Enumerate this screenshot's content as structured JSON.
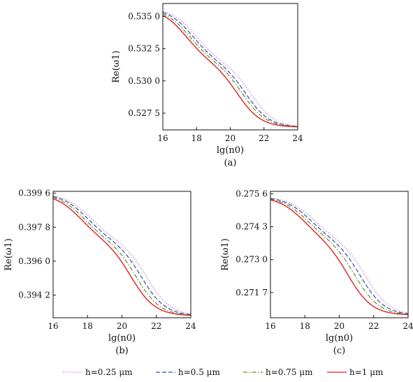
{
  "figure": {
    "legend": [
      {
        "label": "h=0.25 μm",
        "color": "#c45fd0",
        "dash": "dot"
      },
      {
        "label": "h=0.5 μm",
        "color": "#2a4fb0",
        "dash": "dash"
      },
      {
        "label": "h=0.75 μm",
        "color": "#6a8a1f",
        "dash": "dashdot"
      },
      {
        "label": "h=1 μm",
        "color": "#e02020",
        "dash": "solid"
      }
    ]
  },
  "chart_data": [
    {
      "type": "line",
      "panel_label": "(a)",
      "xlabel": "lg(n0)",
      "ylabel": "Re(ω1)",
      "xlim": [
        16,
        24
      ],
      "ylim": [
        0.5262,
        0.536
      ],
      "xticks": [
        16,
        18,
        20,
        22,
        24
      ],
      "xtick_labels": [
        "16",
        "18",
        "20",
        "22",
        "24"
      ],
      "yticks": [
        0.5275,
        0.53,
        0.5325,
        0.535
      ],
      "ytick_labels": [
        "0.527 5",
        "0.530 0",
        "0.532 5",
        "0.535 0"
      ],
      "curve": {
        "top": 0.5357,
        "plateau": 0.5314,
        "bottom": 0.5264
      },
      "series": [
        {
          "name": "h=0.25 μm",
          "c1": 17.95,
          "c2": 21.25
        },
        {
          "name": "h=0.5 μm",
          "c1": 17.75,
          "c2": 20.95
        },
        {
          "name": "h=0.75 μm",
          "c1": 17.55,
          "c2": 20.75
        },
        {
          "name": "h=1 μm",
          "c1": 17.35,
          "c2": 20.45
        }
      ]
    },
    {
      "type": "line",
      "panel_label": "(b)",
      "xlabel": "lg(n0)",
      "ylabel": "Re(ω1)",
      "xlim": [
        16,
        24
      ],
      "ylim": [
        0.393,
        0.3997
      ],
      "xticks": [
        16,
        18,
        20,
        22,
        24
      ],
      "xtick_labels": [
        "16",
        "18",
        "20",
        "22",
        "24"
      ],
      "yticks": [
        0.3942,
        0.396,
        0.3978,
        0.3996
      ],
      "ytick_labels": [
        "0.394 2",
        "0.396 0",
        "0.397 8",
        "0.399 6"
      ],
      "curve": {
        "top": 0.3996,
        "plateau": 0.3971,
        "bottom": 0.3931
      },
      "series": [
        {
          "name": "h=0.25 μm",
          "c1": 18.15,
          "c2": 21.45
        },
        {
          "name": "h=0.5 μm",
          "c1": 17.95,
          "c2": 21.15
        },
        {
          "name": "h=0.75 μm",
          "c1": 17.75,
          "c2": 20.85
        },
        {
          "name": "h=1 μm",
          "c1": 17.55,
          "c2": 20.55
        }
      ]
    },
    {
      "type": "line",
      "panel_label": "(c)",
      "xlabel": "lg(n0)",
      "ylabel": "Re(ω1)",
      "xlim": [
        16,
        24
      ],
      "ylim": [
        0.2707,
        0.2757
      ],
      "xticks": [
        16,
        18,
        20,
        22,
        24
      ],
      "xtick_labels": [
        "16",
        "18",
        "20",
        "22",
        "24"
      ],
      "yticks": [
        0.2717,
        0.273,
        0.2743,
        0.2756
      ],
      "ytick_labels": [
        "0.271 7",
        "0.273 0",
        "0.274 3",
        "0.275 6"
      ],
      "curve": {
        "top": 0.2755,
        "plateau": 0.2738,
        "bottom": 0.2708
      },
      "series": [
        {
          "name": "h=0.25 μm",
          "c1": 18.45,
          "c2": 21.55
        },
        {
          "name": "h=0.5 μm",
          "c1": 18.25,
          "c2": 21.25
        },
        {
          "name": "h=0.75 μm",
          "c1": 18.05,
          "c2": 20.95
        },
        {
          "name": "h=1 μm",
          "c1": 17.85,
          "c2": 20.55
        }
      ]
    }
  ]
}
